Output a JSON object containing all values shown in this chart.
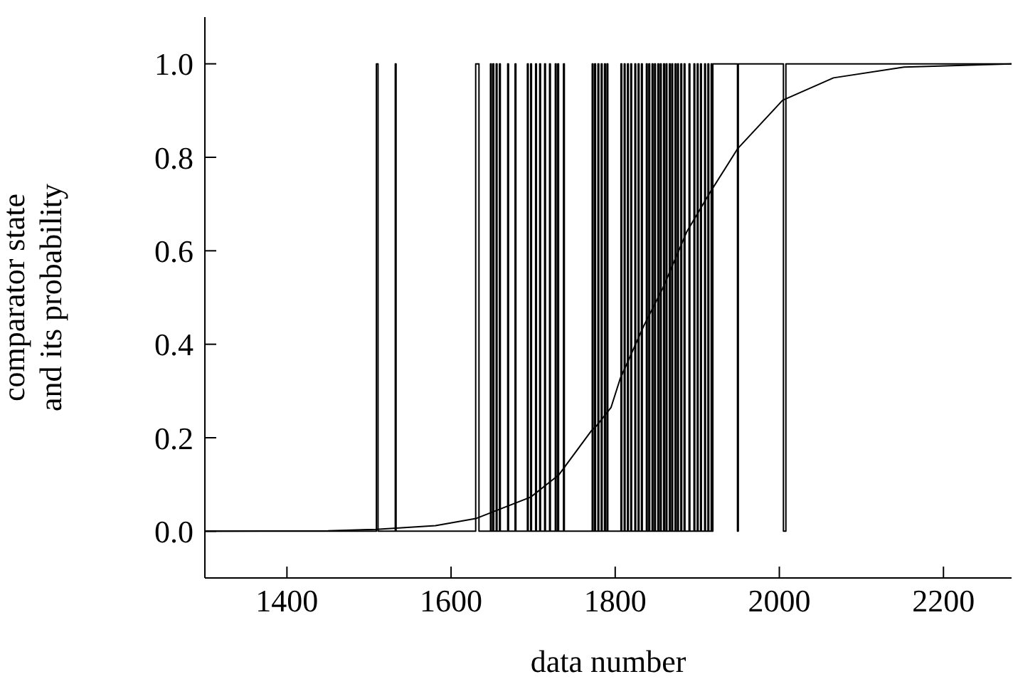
{
  "chart_data": {
    "type": "line",
    "xlabel": "data number",
    "ylabel": "comparator state\nand its probability",
    "xlim": [
      1300,
      2283
    ],
    "xticks": [
      1400,
      1600,
      1800,
      2000,
      2200
    ],
    "ylim": [
      -0.1,
      1.1
    ],
    "yticks": [
      {
        "value": 0,
        "label": "0.0"
      },
      {
        "value": 0.2,
        "label": "0.2"
      },
      {
        "value": 0.4,
        "label": "0.4"
      },
      {
        "value": 0.6,
        "label": "0.6"
      },
      {
        "value": 0.8,
        "label": "0.8"
      },
      {
        "value": 1,
        "label": "1.0"
      }
    ],
    "grid": false,
    "legend": false,
    "marker": "none",
    "line_style": "solid",
    "series": [
      {
        "type": "step",
        "color": "#000000",
        "x": [
          1300,
          1509,
          1511,
          1532,
          1533,
          1630,
          1634,
          1648,
          1649,
          1651,
          1652,
          1655,
          1656,
          1659,
          1660,
          1669,
          1670,
          1678,
          1679,
          1693,
          1694,
          1697,
          1698,
          1703,
          1704,
          1708,
          1709,
          1714,
          1715,
          1720,
          1721,
          1727,
          1728,
          1730,
          1731,
          1737,
          1738,
          1772,
          1773,
          1775,
          1776,
          1779,
          1780,
          1783,
          1784,
          1787,
          1788,
          1790,
          1791,
          1807,
          1808,
          1811,
          1812,
          1815,
          1816,
          1819,
          1820,
          1824,
          1825,
          1828,
          1829,
          1832,
          1833,
          1838,
          1839,
          1841,
          1842,
          1845,
          1846,
          1848,
          1849,
          1852,
          1853,
          1855,
          1856,
          1859,
          1860,
          1862,
          1863,
          1866,
          1867,
          1869,
          1870,
          1873,
          1874,
          1876,
          1877,
          1880,
          1881,
          1884,
          1885,
          1890,
          1891,
          1896,
          1897,
          1900,
          1901,
          1904,
          1905,
          1909,
          1910,
          1913,
          1914,
          1917,
          1918,
          1919,
          1949,
          1950,
          2005,
          2008,
          2283
        ],
        "values": [
          0,
          1,
          0,
          1,
          0,
          1,
          0,
          1,
          0,
          1,
          0,
          1,
          0,
          1,
          0,
          1,
          0,
          1,
          0,
          1,
          0,
          1,
          0,
          1,
          0,
          1,
          0,
          1,
          0,
          1,
          0,
          1,
          0,
          1,
          0,
          1,
          0,
          1,
          0,
          1,
          0,
          1,
          0,
          1,
          0,
          1,
          0,
          1,
          0,
          1,
          0,
          1,
          0,
          1,
          0,
          1,
          0,
          1,
          0,
          1,
          0,
          1,
          0,
          1,
          0,
          1,
          0,
          1,
          0,
          1,
          0,
          1,
          0,
          1,
          0,
          1,
          0,
          1,
          0,
          1,
          0,
          1,
          0,
          1,
          0,
          1,
          0,
          1,
          0,
          1,
          0,
          1,
          0,
          1,
          0,
          1,
          0,
          1,
          0,
          1,
          0,
          1,
          0,
          1,
          0,
          1,
          0,
          1,
          0,
          1,
          1
        ]
      },
      {
        "type": "line",
        "color": "#000000",
        "x": [
          1300,
          1450,
          1509,
          1581,
          1630,
          1697,
          1731,
          1771,
          1777,
          1795,
          1806,
          1835,
          1858,
          1887,
          1916,
          1949,
          2004,
          2066,
          2152,
          2283
        ],
        "values": [
          0,
          0.001,
          0.004,
          0.012,
          0.027,
          0.073,
          0.12,
          0.215,
          0.225,
          0.265,
          0.326,
          0.44,
          0.52,
          0.64,
          0.726,
          0.818,
          0.922,
          0.97,
          0.993,
          1
        ]
      }
    ]
  }
}
